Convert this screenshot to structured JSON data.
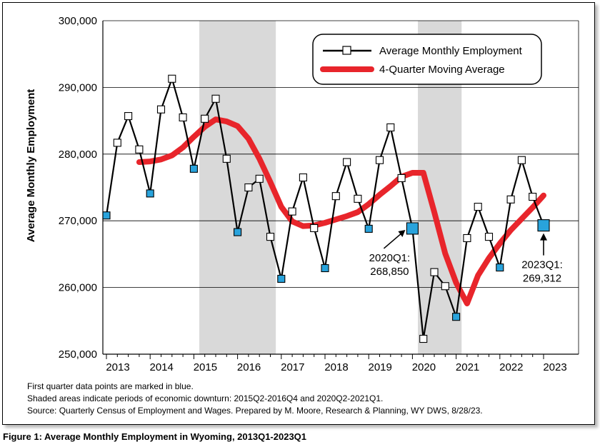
{
  "chart_data": {
    "type": "line",
    "ylabel": "Average Monthly Employment",
    "ylim": [
      250000,
      300000
    ],
    "y_ticks": [
      "250,000",
      "260,000",
      "270,000",
      "280,000",
      "290,000",
      "300,000"
    ],
    "x_ticks": [
      "2013",
      "2014",
      "2015",
      "2016",
      "2017",
      "2018",
      "2019",
      "2020",
      "2021",
      "2022",
      "2023"
    ],
    "grid": "horizontal",
    "legend_position": "top-right",
    "shaded_periods": [
      {
        "start": "2015Q2",
        "end": "2016Q4",
        "color": "#d9d9d9"
      },
      {
        "start": "2020Q2",
        "end": "2021Q1",
        "color": "#d9d9d9"
      }
    ],
    "x_quarters": [
      "2013Q1",
      "2013Q2",
      "2013Q3",
      "2013Q4",
      "2014Q1",
      "2014Q2",
      "2014Q3",
      "2014Q4",
      "2015Q1",
      "2015Q2",
      "2015Q3",
      "2015Q4",
      "2016Q1",
      "2016Q2",
      "2016Q3",
      "2016Q4",
      "2017Q1",
      "2017Q2",
      "2017Q3",
      "2017Q4",
      "2018Q1",
      "2018Q2",
      "2018Q3",
      "2018Q4",
      "2019Q1",
      "2019Q2",
      "2019Q3",
      "2019Q4",
      "2020Q1",
      "2020Q2",
      "2020Q3",
      "2020Q4",
      "2021Q1",
      "2021Q2",
      "2021Q3",
      "2021Q4",
      "2022Q1",
      "2022Q2",
      "2022Q3",
      "2022Q4",
      "2023Q1"
    ],
    "series": [
      {
        "name": "Average Monthly Employment",
        "color": "#000000",
        "marker": "square",
        "q1_marker_color": "#29a3dc",
        "values": [
          270800,
          281700,
          285700,
          280700,
          274100,
          286700,
          291300,
          285500,
          277800,
          285300,
          288300,
          279300,
          268300,
          275000,
          276300,
          267600,
          261300,
          271400,
          276500,
          268900,
          262900,
          273700,
          278800,
          273300,
          268800,
          279100,
          284000,
          276400,
          268850,
          252300,
          262300,
          260200,
          255600,
          267400,
          272100,
          267600,
          263000,
          273200,
          279100,
          273600,
          269312
        ]
      },
      {
        "name": "4-Quarter Moving Average",
        "color": "#e8252b",
        "values": [
          278800,
          278900,
          279200,
          279800,
          281000,
          282600,
          284100,
          285200,
          284900,
          284200,
          282300,
          279300,
          275800,
          272100,
          269900,
          269200,
          269300,
          269700,
          270200,
          270700,
          271300,
          272500,
          273900,
          275200,
          276600,
          277200,
          277200,
          271300,
          265100,
          260700,
          257600,
          261800,
          264400,
          266600,
          268600,
          270300,
          272000,
          273800
        ]
      }
    ],
    "annotations": [
      {
        "text_line1": "2020Q1:",
        "text_line2": "268,850"
      },
      {
        "text_line1": "2023Q1:",
        "text_line2": "269,312"
      }
    ]
  },
  "notes": {
    "line1": "First quarter data points are marked in blue.",
    "line2": "Shaded areas indicate periods of economic downturn: 2015Q2-2016Q4 and 2020Q2-2021Q1.",
    "line3": "Source: Quarterly Census of Employment and Wages. Prepared by M. Moore, Research & Planning, WY DWS, 8/28/23."
  },
  "caption": "Figure 1: Average Monthly Employment in Wyoming, 2013Q1-2023Q1"
}
